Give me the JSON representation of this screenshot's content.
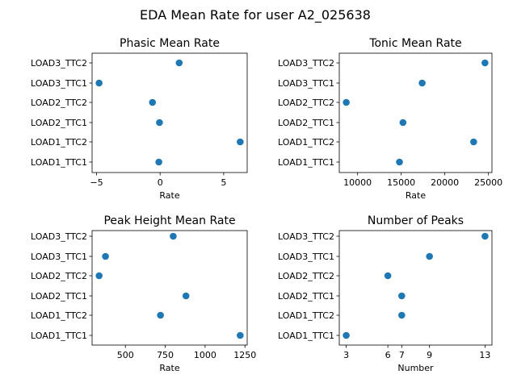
{
  "figure_title": "EDA Mean Rate for user A2_025638",
  "chart_data": [
    {
      "type": "scatter",
      "title": "Phasic Mean Rate",
      "xlabel": "Rate",
      "ylabel": "",
      "categories": [
        "LOAD1_TTC1",
        "LOAD1_TTC2",
        "LOAD2_TTC1",
        "LOAD2_TTC2",
        "LOAD3_TTC1",
        "LOAD3_TTC2"
      ],
      "values": [
        -0.1,
        6.3,
        -0.05,
        -0.6,
        -4.8,
        1.5
      ],
      "xticks": [
        -5,
        0,
        5
      ],
      "xtick_labels": [
        "−5",
        "0",
        "5"
      ],
      "xlim": [
        -5.35,
        6.85
      ],
      "color": "#1f77b4",
      "grid": false,
      "legend": "none"
    },
    {
      "type": "scatter",
      "title": "Tonic Mean Rate",
      "xlabel": "Rate",
      "ylabel": "",
      "categories": [
        "LOAD1_TTC1",
        "LOAD1_TTC2",
        "LOAD2_TTC1",
        "LOAD2_TTC2",
        "LOAD3_TTC1",
        "LOAD3_TTC2"
      ],
      "values": [
        14800,
        23300,
        15200,
        8700,
        17400,
        24600
      ],
      "xticks": [
        10000,
        15000,
        20000,
        25000
      ],
      "xtick_labels": [
        "10000",
        "15000",
        "20000",
        "25000"
      ],
      "xlim": [
        7900,
        25400
      ],
      "color": "#1f77b4",
      "grid": false,
      "legend": "none"
    },
    {
      "type": "scatter",
      "title": "Peak Height Mean Rate",
      "xlabel": "Rate",
      "ylabel": "",
      "categories": [
        "LOAD1_TTC1",
        "LOAD1_TTC2",
        "LOAD2_TTC1",
        "LOAD2_TTC2",
        "LOAD3_TTC1",
        "LOAD3_TTC2"
      ],
      "values": [
        1220,
        720,
        880,
        335,
        375,
        800
      ],
      "xticks": [
        500,
        750,
        1000,
        1250
      ],
      "xtick_labels": [
        "500",
        "750",
        "1000",
        "1250"
      ],
      "xlim": [
        291,
        1264
      ],
      "color": "#1f77b4",
      "grid": false,
      "legend": "none"
    },
    {
      "type": "scatter",
      "title": "Number of Peaks",
      "xlabel": "Number",
      "ylabel": "",
      "categories": [
        "LOAD1_TTC1",
        "LOAD1_TTC2",
        "LOAD2_TTC1",
        "LOAD2_TTC2",
        "LOAD3_TTC1",
        "LOAD3_TTC2"
      ],
      "values": [
        3,
        7,
        7,
        6,
        9,
        13
      ],
      "xticks": [
        3,
        6,
        7,
        9,
        13
      ],
      "xtick_labels": [
        "3",
        "6",
        "7",
        "9",
        "13"
      ],
      "xlim": [
        2.5,
        13.5
      ],
      "color": "#1f77b4",
      "grid": false,
      "legend": "none"
    }
  ]
}
